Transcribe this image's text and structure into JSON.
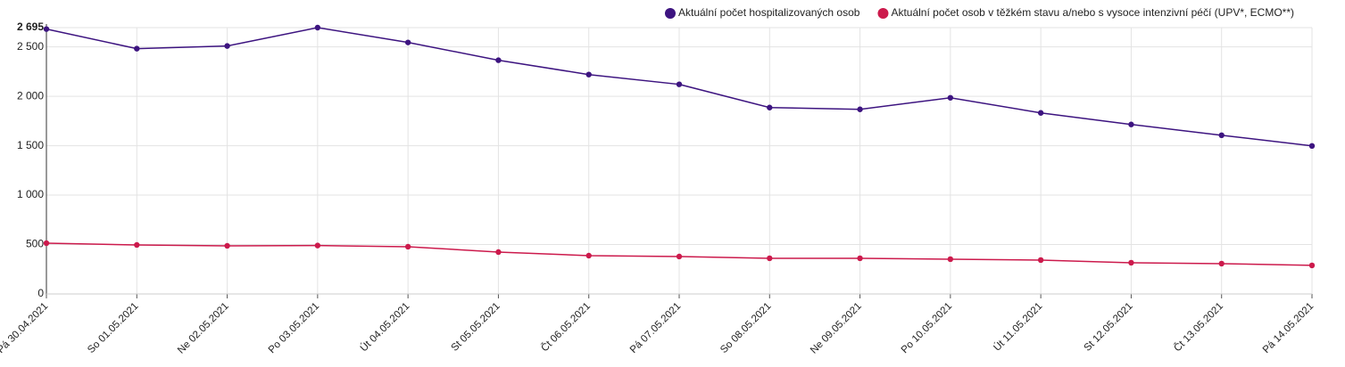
{
  "chart_data": {
    "type": "line",
    "categories": [
      "Pá 30.04.2021",
      "So 01.05.2021",
      "Ne 02.05.2021",
      "Po 03.05.2021",
      "Út 04.05.2021",
      "St 05.05.2021",
      "Čt 06.05.2021",
      "Pá 07.05.2021",
      "So 08.05.2021",
      "Ne 09.05.2021",
      "Po 10.05.2021",
      "Út 11.05.2021",
      "St 12.05.2021",
      "Čt 13.05.2021",
      "Pá 14.05.2021"
    ],
    "series": [
      {
        "name": "Aktuální počet hospitalizovaných osob",
        "color": "#3d1480",
        "values": [
          2680,
          2482,
          2509,
          2695,
          2545,
          2365,
          2220,
          2121,
          1886,
          1868,
          1985,
          1832,
          1715,
          1606,
          1498
        ]
      },
      {
        "name": "Aktuální počet osob v těžkém stavu a/nebo s vysoce intenzivní péčí (UPV*, ECMO**)",
        "color": "#cc1a4c",
        "values": [
          514,
          496,
          487,
          490,
          478,
          424,
          388,
          379,
          361,
          361,
          352,
          343,
          316,
          307,
          289
        ]
      }
    ],
    "ylim": [
      0,
      2695
    ],
    "yticks": [
      0,
      500,
      {
        "value": 1000,
        "label": "1 000"
      },
      {
        "value": 1500,
        "label": "1 500"
      },
      {
        "value": 2000,
        "label": "2 000"
      },
      {
        "value": 2500,
        "label": "2 500"
      },
      {
        "value": 2695,
        "label": "2 695"
      }
    ],
    "grid": true,
    "legend": "top-right"
  }
}
